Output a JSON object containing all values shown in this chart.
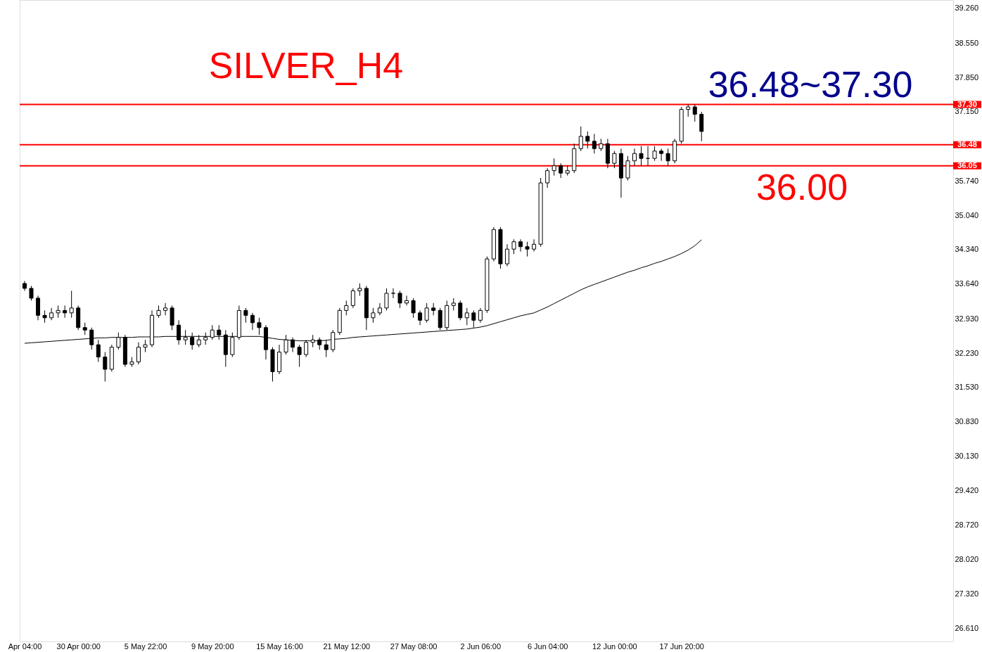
{
  "chart_data": {
    "type": "candlestick",
    "annotations": [
      "SILVER_H4",
      "36.48~37.30",
      "36.00"
    ],
    "categories": [
      "Apr 04:00",
      null,
      null,
      null,
      null,
      null,
      null,
      null,
      "30 Apr 00:00",
      null,
      null,
      null,
      null,
      null,
      null,
      null,
      null,
      null,
      "5 May 22:00",
      null,
      null,
      null,
      null,
      null,
      null,
      null,
      null,
      null,
      "9 May 20:00",
      null,
      null,
      null,
      null,
      null,
      null,
      null,
      null,
      null,
      "15 May 16:00",
      null,
      null,
      null,
      null,
      null,
      null,
      null,
      null,
      null,
      "21 May 12:00",
      null,
      null,
      null,
      null,
      null,
      null,
      null,
      null,
      null,
      "27 May 08:00",
      null,
      null,
      null,
      null,
      null,
      null,
      null,
      null,
      null,
      "2 Jun 06:00",
      null,
      null,
      null,
      null,
      null,
      null,
      null,
      null,
      null,
      "6 Jun 04:00",
      null,
      null,
      null,
      null,
      null,
      null,
      null,
      null,
      null,
      "12 Jun 00:00",
      null,
      null,
      null,
      null,
      null,
      null,
      null,
      null,
      null,
      "17 Jun 20:00",
      null,
      null,
      null
    ],
    "ohlc": [
      [
        33.65,
        33.7,
        33.5,
        33.55
      ],
      [
        33.55,
        33.6,
        33.3,
        33.35
      ],
      [
        33.35,
        33.4,
        32.9,
        33.0
      ],
      [
        33.0,
        33.1,
        32.85,
        32.95
      ],
      [
        32.95,
        33.15,
        32.9,
        33.05
      ],
      [
        33.05,
        33.2,
        32.95,
        33.1
      ],
      [
        33.1,
        33.2,
        32.95,
        33.05
      ],
      [
        33.05,
        33.5,
        32.95,
        33.15
      ],
      [
        33.15,
        33.2,
        32.7,
        32.75
      ],
      [
        32.75,
        32.85,
        32.6,
        32.7
      ],
      [
        32.7,
        32.75,
        32.3,
        32.4
      ],
      [
        32.4,
        32.5,
        32.05,
        32.15
      ],
      [
        32.15,
        32.25,
        31.65,
        31.9
      ],
      [
        31.9,
        32.4,
        31.85,
        32.35
      ],
      [
        32.35,
        32.65,
        32.3,
        32.55
      ],
      [
        32.55,
        32.6,
        31.95,
        32.0
      ],
      [
        32.0,
        32.15,
        31.95,
        32.05
      ],
      [
        32.05,
        32.45,
        32.0,
        32.35
      ],
      [
        32.35,
        32.5,
        32.25,
        32.4
      ],
      [
        32.4,
        33.1,
        32.35,
        33.0
      ],
      [
        33.0,
        33.2,
        32.95,
        33.1
      ],
      [
        33.1,
        33.25,
        33.0,
        33.15
      ],
      [
        33.15,
        33.2,
        32.7,
        32.8
      ],
      [
        32.8,
        32.9,
        32.4,
        32.5
      ],
      [
        32.5,
        32.7,
        32.4,
        32.55
      ],
      [
        32.55,
        32.65,
        32.3,
        32.4
      ],
      [
        32.4,
        32.6,
        32.35,
        32.5
      ],
      [
        32.5,
        32.65,
        32.4,
        32.55
      ],
      [
        32.55,
        32.8,
        32.5,
        32.7
      ],
      [
        32.7,
        32.8,
        32.5,
        32.6
      ],
      [
        32.6,
        32.7,
        31.95,
        32.2
      ],
      [
        32.2,
        32.65,
        32.15,
        32.55
      ],
      [
        32.55,
        33.2,
        32.5,
        33.1
      ],
      [
        33.1,
        33.15,
        32.85,
        33.0
      ],
      [
        33.0,
        33.05,
        32.7,
        32.85
      ],
      [
        32.85,
        32.95,
        32.6,
        32.75
      ],
      [
        32.75,
        32.8,
        32.1,
        32.3
      ],
      [
        32.3,
        32.35,
        31.65,
        31.85
      ],
      [
        31.85,
        32.4,
        31.8,
        32.25
      ],
      [
        32.25,
        32.6,
        32.2,
        32.5
      ],
      [
        32.5,
        32.55,
        32.25,
        32.35
      ],
      [
        32.35,
        32.4,
        31.95,
        32.2
      ],
      [
        32.2,
        32.5,
        32.15,
        32.45
      ],
      [
        32.45,
        32.6,
        32.35,
        32.5
      ],
      [
        32.5,
        32.55,
        32.3,
        32.4
      ],
      [
        32.4,
        32.5,
        32.15,
        32.3
      ],
      [
        32.3,
        32.7,
        32.25,
        32.65
      ],
      [
        32.65,
        33.15,
        32.6,
        33.1
      ],
      [
        33.1,
        33.3,
        33.0,
        33.2
      ],
      [
        33.2,
        33.55,
        33.15,
        33.5
      ],
      [
        33.5,
        33.65,
        33.4,
        33.55
      ],
      [
        33.55,
        33.6,
        32.7,
        32.95
      ],
      [
        32.95,
        33.15,
        32.85,
        33.05
      ],
      [
        33.05,
        33.25,
        33.0,
        33.15
      ],
      [
        33.15,
        33.55,
        33.1,
        33.45
      ],
      [
        33.45,
        33.55,
        33.35,
        33.45
      ],
      [
        33.45,
        33.5,
        33.15,
        33.25
      ],
      [
        33.25,
        33.4,
        33.2,
        33.3
      ],
      [
        33.3,
        33.35,
        32.95,
        33.05
      ],
      [
        33.05,
        33.1,
        32.8,
        32.9
      ],
      [
        32.9,
        33.25,
        32.85,
        33.15
      ],
      [
        33.15,
        33.25,
        33.0,
        33.1
      ],
      [
        33.1,
        33.15,
        32.7,
        32.75
      ],
      [
        32.75,
        33.3,
        32.7,
        33.2
      ],
      [
        33.2,
        33.35,
        33.1,
        33.25
      ],
      [
        33.25,
        33.3,
        32.9,
        32.95
      ],
      [
        32.95,
        33.15,
        32.8,
        33.05
      ],
      [
        33.05,
        33.1,
        32.75,
        32.9
      ],
      [
        32.9,
        33.15,
        32.85,
        33.1
      ],
      [
        33.1,
        34.2,
        33.05,
        34.15
      ],
      [
        34.15,
        34.8,
        34.1,
        34.75
      ],
      [
        34.75,
        34.8,
        33.95,
        34.05
      ],
      [
        34.05,
        34.45,
        34.0,
        34.35
      ],
      [
        34.35,
        34.55,
        34.25,
        34.5
      ],
      [
        34.5,
        34.55,
        34.3,
        34.4
      ],
      [
        34.4,
        34.5,
        34.2,
        34.35
      ],
      [
        34.35,
        34.55,
        34.3,
        34.45
      ],
      [
        34.45,
        35.8,
        34.4,
        35.7
      ],
      [
        35.7,
        36.0,
        35.6,
        35.95
      ],
      [
        35.95,
        36.2,
        35.85,
        36.05
      ],
      [
        36.05,
        36.1,
        35.8,
        35.9
      ],
      [
        35.9,
        36.05,
        35.85,
        35.95
      ],
      [
        35.95,
        36.5,
        35.9,
        36.4
      ],
      [
        36.4,
        36.85,
        36.35,
        36.65
      ],
      [
        36.65,
        36.75,
        36.4,
        36.55
      ],
      [
        36.55,
        36.7,
        36.3,
        36.4
      ],
      [
        36.4,
        36.6,
        36.35,
        36.5
      ],
      [
        36.5,
        36.6,
        36.0,
        36.1
      ],
      [
        36.1,
        36.35,
        36.0,
        36.3
      ],
      [
        36.3,
        36.4,
        35.4,
        35.8
      ],
      [
        35.8,
        36.25,
        35.75,
        36.15
      ],
      [
        36.15,
        36.4,
        36.05,
        36.3
      ],
      [
        36.3,
        36.45,
        36.05,
        36.2
      ],
      [
        36.2,
        36.45,
        36.05,
        36.2
      ],
      [
        36.2,
        36.45,
        36.15,
        36.35
      ],
      [
        36.35,
        36.4,
        36.15,
        36.3
      ],
      [
        36.3,
        36.4,
        36.05,
        36.15
      ],
      [
        36.15,
        36.6,
        36.1,
        36.55
      ],
      [
        36.55,
        37.25,
        36.5,
        37.2
      ],
      [
        37.2,
        37.3,
        37.05,
        37.25
      ],
      [
        37.25,
        37.3,
        36.95,
        37.1
      ],
      [
        37.1,
        37.15,
        36.55,
        36.75
      ]
    ],
    "series": [
      {
        "type": "line",
        "color": "#000000",
        "values": [
          32.43,
          32.44,
          32.45,
          32.46,
          32.47,
          32.48,
          32.49,
          32.5,
          32.51,
          32.52,
          32.53,
          32.54,
          32.54,
          32.55,
          32.55,
          32.55,
          32.55,
          32.56,
          32.56,
          32.56,
          32.56,
          32.57,
          32.57,
          32.57,
          32.57,
          32.57,
          32.57,
          32.57,
          32.57,
          32.57,
          32.57,
          32.57,
          32.57,
          32.57,
          32.57,
          32.57,
          32.55,
          32.53,
          32.51,
          32.5,
          32.49,
          32.48,
          32.48,
          32.48,
          32.48,
          32.49,
          32.51,
          32.52,
          32.53,
          32.55,
          32.56,
          32.57,
          32.58,
          32.59,
          32.6,
          32.61,
          32.62,
          32.63,
          32.64,
          32.65,
          32.66,
          32.67,
          32.68,
          32.69,
          32.7,
          32.71,
          32.72,
          32.74,
          32.76,
          32.79,
          32.83,
          32.87,
          32.91,
          32.95,
          32.99,
          33.02,
          33.05,
          33.11,
          33.17,
          33.24,
          33.31,
          33.38,
          33.45,
          33.52,
          33.58,
          33.63,
          33.68,
          33.73,
          33.78,
          33.83,
          33.88,
          33.92,
          33.97,
          34.01,
          34.06,
          34.1,
          34.15,
          34.2,
          34.26,
          34.33,
          34.42,
          34.54
        ]
      }
    ],
    "ref_lines": [
      {
        "axis": "y",
        "value": 37.3,
        "label": "37.30",
        "color": "#ff0000"
      },
      {
        "axis": "y",
        "value": 36.48,
        "label": "36.48",
        "color": "#ff0000"
      },
      {
        "axis": "y",
        "value": 36.05,
        "label": "36.05",
        "color": "#ff0000"
      }
    ],
    "ylim": [
      26.35,
      39.43
    ],
    "yticks": [
      {
        "value": 39.26,
        "label": "39.260"
      },
      {
        "value": 38.55,
        "label": "38.550"
      },
      {
        "value": 37.85,
        "label": "37.850"
      },
      {
        "value": 37.15,
        "label": "37.150"
      },
      {
        "value": 35.74,
        "label": "35.740"
      },
      {
        "value": 35.04,
        "label": "35.040"
      },
      {
        "value": 34.34,
        "label": "34.340"
      },
      {
        "value": 33.64,
        "label": "33.640"
      },
      {
        "value": 32.93,
        "label": "32.930"
      },
      {
        "value": 32.23,
        "label": "32.230"
      },
      {
        "value": 31.53,
        "label": "31.530"
      },
      {
        "value": 30.83,
        "label": "30.830"
      },
      {
        "value": 30.13,
        "label": "30.130"
      },
      {
        "value": 29.42,
        "label": "29.420"
      },
      {
        "value": 28.72,
        "label": "28.720"
      },
      {
        "value": 28.02,
        "label": "28.020"
      },
      {
        "value": 27.32,
        "label": "27.320"
      },
      {
        "value": 26.61,
        "label": "26.610"
      }
    ],
    "grid": false
  }
}
